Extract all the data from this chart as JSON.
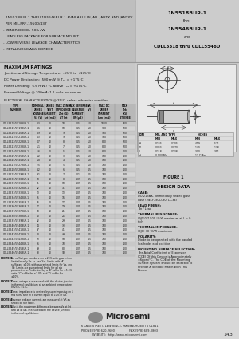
{
  "bg_color": "#cccccc",
  "header_bg": "#c0c0c0",
  "header_right_bg": "#cccccc",
  "section_bg": "#c8c8c8",
  "white": "#ffffff",
  "table_line": "#888888",
  "header_left_lines": [
    "- 1N5518BUR-1 THRU 1N5546BUR-1 AVAILABLE IN JAN, JANTX AND JANTXV",
    "  PER MIL-PRF-19500/437",
    "- ZENER DIODE, 500mW",
    "- LEADLESS PACKAGE FOR SURFACE MOUNT",
    "- LOW REVERSE LEAKAGE CHARACTERISTICS",
    "- METALLURGICALLY BONDED"
  ],
  "header_right_lines": [
    "1N5518BUR-1",
    "thru",
    "1N5546BUR-1",
    "and",
    "CDLL5518 thru CDLL5546D"
  ],
  "max_ratings_title": "MAXIMUM RATINGS",
  "max_ratings_lines": [
    "Junction and Storage Temperature:  -65°C to +175°C",
    "DC Power Dissipation:  500 mW @ T₀₀ = +175°C",
    "Power Derating:  6.6 mW / °C above T₀₀ = +175°C",
    "Forward Voltage @ 200mA: 1.1 volts maximum"
  ],
  "elec_char_title": "ELECTRICAL CHARACTERISTICS @ 25°C, unless otherwise specified.",
  "table_col_headers": [
    "TYPE\nNUMBER",
    "NOMINAL\nZENER\nVOLTAGE\nVz (V)",
    "ZENER\nTEST\nCURRENT\nIzt (mA)",
    "MAX ZENER\nIMPEDANCE\nZzt (Ω)\nAT Izt",
    "MAX REVERSE\nLEAKAGE\nCURRENT\nIR (μA)",
    "VR\n(V)",
    "MAX DC\nZENER\nCURRENT\nIzm (mA)",
    "MAX\nZzk\n(Ω)\nAT KNEE"
  ],
  "table_rows": [
    [
      "CDLL5518/5518BUR-1",
      "3.3",
      "20",
      "10",
      "0.5",
      "1.0",
      "1000",
      "700"
    ],
    [
      "CDLL5519/5519BUR-1",
      "3.6",
      "20",
      "10",
      "0.5",
      "1.0",
      "900",
      "700"
    ],
    [
      "CDLL5520/5520BUR-1",
      "3.9",
      "20",
      "9",
      "0.5",
      "1.0",
      "900",
      "700"
    ],
    [
      "CDLL5521/5521BUR-1",
      "4.3",
      "20",
      "9",
      "0.5",
      "1.0",
      "900",
      "600"
    ],
    [
      "CDLL5522/5522BUR-1",
      "4.7",
      "20",
      "8",
      "0.5",
      "1.0",
      "800",
      "500"
    ],
    [
      "CDLL5523/5523BUR-1",
      "5.1",
      "20",
      "7",
      "0.5",
      "1.0",
      "800",
      "500"
    ],
    [
      "CDLL5524/5524BUR-1",
      "5.6",
      "20",
      "5",
      "0.5",
      "1.0",
      "800",
      "400"
    ],
    [
      "CDLL5525/5525BUR-1",
      "6.2",
      "20",
      "3",
      "0.5",
      "1.0",
      "700",
      "200"
    ],
    [
      "CDLL5526/5526BUR-1",
      "6.8",
      "20",
      "4",
      "0.5",
      "1.0",
      "700",
      "200"
    ],
    [
      "CDLL5527/5527BUR-1",
      "7.5",
      "20",
      "5",
      "0.5",
      "1.0",
      "700",
      "200"
    ],
    [
      "CDLL5528/5528BUR-1",
      "8.2",
      "20",
      "6",
      "0.5",
      "0.5",
      "700",
      "200"
    ],
    [
      "CDLL5529/5529BUR-1",
      "9.1",
      "20",
      "7",
      "0.1",
      "0.5",
      "700",
      "200"
    ],
    [
      "CDLL5530/5530BUR-1",
      "10",
      "20",
      "8",
      "0.05",
      "0.5",
      "700",
      "200"
    ],
    [
      "CDLL5531/5531BUR-1",
      "11",
      "20",
      "10",
      "0.05",
      "0.5",
      "700",
      "200"
    ],
    [
      "CDLL5532/5532BUR-1",
      "12",
      "20",
      "11",
      "0.05",
      "0.5",
      "700",
      "200"
    ],
    [
      "CDLL5533/5533BUR-1",
      "13",
      "20",
      "13",
      "0.05",
      "0.5",
      "700",
      "200"
    ],
    [
      "CDLL5534/5534BUR-1",
      "15",
      "20",
      "16",
      "0.05",
      "0.5",
      "700",
      "200"
    ],
    [
      "CDLL5535/5535BUR-1",
      "16",
      "20",
      "17",
      "0.05",
      "0.5",
      "700",
      "200"
    ],
    [
      "CDLL5536/5536BUR-1",
      "17",
      "20",
      "19",
      "0.05",
      "0.5",
      "700",
      "200"
    ],
    [
      "CDLL5537/5537BUR-1",
      "18",
      "20",
      "21",
      "0.05",
      "0.5",
      "700",
      "200"
    ],
    [
      "CDLL5538/5538BUR-1",
      "20",
      "20",
      "25",
      "0.05",
      "0.5",
      "700",
      "200"
    ],
    [
      "CDLL5539/5539BUR-1",
      "22",
      "20",
      "29",
      "0.05",
      "0.5",
      "700",
      "200"
    ],
    [
      "CDLL5540/5540BUR-1",
      "24",
      "20",
      "33",
      "0.05",
      "0.5",
      "700",
      "200"
    ],
    [
      "CDLL5541/5541BUR-1",
      "27",
      "20",
      "41",
      "0.05",
      "0.5",
      "700",
      "200"
    ],
    [
      "CDLL5542/5542BUR-1",
      "30",
      "20",
      "49",
      "0.05",
      "0.5",
      "700",
      "200"
    ],
    [
      "CDLL5543/5543BUR-1",
      "33",
      "20",
      "58",
      "0.05",
      "0.5",
      "700",
      "200"
    ],
    [
      "CDLL5544/5544BUR-1",
      "36",
      "20",
      "70",
      "0.05",
      "0.5",
      "700",
      "200"
    ],
    [
      "CDLL5545/5545BUR-1",
      "39",
      "20",
      "80",
      "0.05",
      "0.5",
      "700",
      "200"
    ],
    [
      "CDLL5546/5546BUR-1",
      "43",
      "20",
      "93",
      "0.05",
      "0.5",
      "700",
      "200"
    ]
  ],
  "notes_data": [
    [
      "NOTE 1",
      "No suffix type numbers are ±20% with guaranteed limits for only Vz, Iz, and Yzr. Limits with 'A' suffix are ±10% with guaranteed limits for Vz, and Yzr. Limits are guaranteed limits for all six parameters are indicated by a 'B' suffix for ±5.0% units, 'C' suffix for ±2.0% and 'D' suffix for ±1.0%."
    ],
    [
      "NOTE 2",
      "Zener voltage is measured with the device junction in thermal equilibrium at an ambient temperature of 25°C ±1°C."
    ],
    [
      "NOTE 3",
      "Zener impedance is derived by superimposing on 1 mA 60Hz sine in a current equal to 10% of Izt."
    ],
    [
      "NOTE 4",
      "Reverse leakage currents are measured at VR as shown on the table."
    ],
    [
      "NOTE 5",
      "ΔVz is the maximum difference between Vz at Izt and Vz at Izk, measured with the device junction in thermal equilibrium."
    ]
  ],
  "figure_title": "FIGURE 1",
  "design_data_title": "DESIGN DATA",
  "design_data_sections": [
    [
      "CASE: ",
      "DO-213AA, hermetically sealed glass case  (MELF, SOD-80, LL-34)"
    ],
    [
      "LEAD FINISH: ",
      "Tin / Lead"
    ],
    [
      "THERMAL RESISTANCE: ",
      "(θJC)0.7 500 °C/W maximum at L = 0 inch"
    ],
    [
      "THERMAL IMPEDANCE: ",
      "(θJC) 30 °C/W maximum"
    ],
    [
      "POLARITY: ",
      "Diode to be operated with the banded (cathode) end positive."
    ],
    [
      "MOUNTING SURFACE SELECTION: ",
      "The Axial Coefficient of Expansion (COE) Of this Device is Approximately ±6ppm/°C. The COE of the Mounting Surface System Should Be Selected To Provide A Suitable Match With This Device."
    ]
  ],
  "dim_table": {
    "headers": [
      "DIM",
      "MIL AND TYPE MIN",
      "MIL AND TYPE MAX",
      "INCHES MIN",
      "INCHES MAX"
    ],
    "rows": [
      [
        "A",
        "0.165",
        "0.205",
        "4.19",
        "5.21"
      ],
      [
        "D",
        "0.055",
        "0.070",
        "1.40",
        "1.78"
      ],
      [
        "L",
        "0.118",
        "0.138",
        "3.00",
        "3.51"
      ],
      [
        "d",
        "0.500 Min.",
        "",
        "12.7 Min.",
        ""
      ]
    ]
  },
  "footer_lines": [
    "6 LAKE STREET, LAWRENCE, MASSACHUSETTS 01841",
    "PHONE (978) 620-2600                FAX (978) 689-0803",
    "WEBSITE:  http://www.microsemi.com"
  ],
  "page_number": "143"
}
